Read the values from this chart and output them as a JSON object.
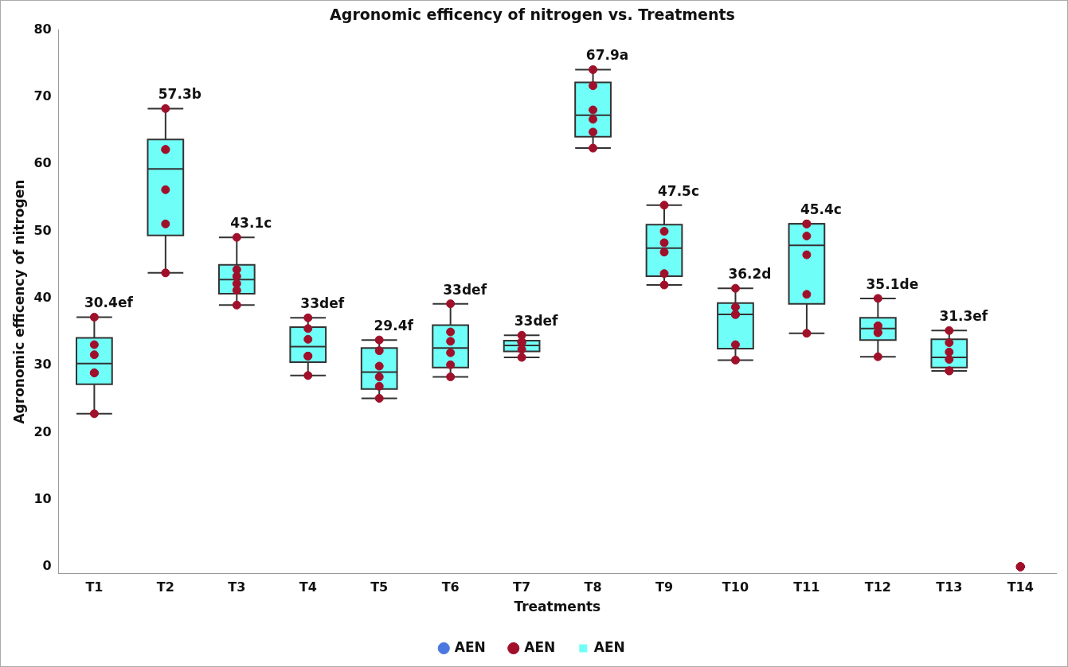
{
  "chart_data": {
    "type": "box",
    "title": "Agronomic efficency of nitrogen vs. Treatments",
    "xlabel": "Treatments",
    "ylabel": "Agronomic efficency of nitrogen",
    "categories": [
      "T1",
      "T2",
      "T3",
      "T4",
      "T5",
      "T6",
      "T7",
      "T8",
      "T9",
      "T10",
      "T11",
      "T12",
      "T13",
      "T14"
    ],
    "ylim": [
      -1,
      80
    ],
    "yticks": [
      0,
      10,
      20,
      30,
      40,
      50,
      60,
      70,
      80
    ],
    "grid": false,
    "legend": "bottom",
    "series": [
      {
        "name": "AEN",
        "type": "scatter",
        "color": "#4a78e0",
        "values": [
          null,
          null,
          null,
          null,
          null,
          null,
          null,
          null,
          null,
          null,
          null,
          null,
          null,
          null
        ]
      },
      {
        "name": "AEN",
        "type": "box",
        "color": "#70fff8",
        "boxes": [
          {
            "low": 22.8,
            "q1": 27.2,
            "median": 30.3,
            "q3": 34.1,
            "high": 37.2
          },
          {
            "low": 43.8,
            "q1": 49.4,
            "median": 59.3,
            "q3": 63.7,
            "high": 68.3
          },
          {
            "low": 39.0,
            "q1": 40.7,
            "median": 42.8,
            "q3": 45.0,
            "high": 49.1
          },
          {
            "low": 28.5,
            "q1": 30.5,
            "median": 32.8,
            "q3": 35.7,
            "high": 37.1
          },
          {
            "low": 25.1,
            "q1": 26.5,
            "median": 29.0,
            "q3": 32.6,
            "high": 33.8
          },
          {
            "low": 28.3,
            "q1": 29.7,
            "median": 32.6,
            "q3": 36.0,
            "high": 39.2
          },
          {
            "low": 31.2,
            "q1": 32.1,
            "median": 33.0,
            "q3": 33.7,
            "high": 34.5
          },
          {
            "low": 62.4,
            "q1": 64.1,
            "median": 67.3,
            "q3": 72.2,
            "high": 74.1
          },
          {
            "low": 42.0,
            "q1": 43.3,
            "median": 47.5,
            "q3": 51.0,
            "high": 53.9
          },
          {
            "low": 30.8,
            "q1": 32.5,
            "median": 37.6,
            "q3": 39.3,
            "high": 41.5
          },
          {
            "low": 34.8,
            "q1": 39.2,
            "median": 47.9,
            "q3": 51.1,
            "high": 51.1
          },
          {
            "low": 31.3,
            "q1": 33.8,
            "median": 35.5,
            "q3": 37.1,
            "high": 40.0
          },
          {
            "low": 29.2,
            "q1": 29.7,
            "median": 31.2,
            "q3": 33.9,
            "high": 35.2
          },
          null
        ]
      },
      {
        "name": "AEN",
        "type": "scatter",
        "color": "#a0102a",
        "x": [
          "T1",
          "T1",
          "T1",
          "T1",
          "T1",
          "T1",
          "T2",
          "T2",
          "T2",
          "T2",
          "T2",
          "T2",
          "T3",
          "T3",
          "T3",
          "T3",
          "T3",
          "T3",
          "T4",
          "T4",
          "T4",
          "T4",
          "T4",
          "T4",
          "T5",
          "T5",
          "T5",
          "T5",
          "T5",
          "T5",
          "T6",
          "T6",
          "T6",
          "T6",
          "T6",
          "T6",
          "T7",
          "T7",
          "T7",
          "T7",
          "T7",
          "T7",
          "T8",
          "T8",
          "T8",
          "T8",
          "T8",
          "T8",
          "T9",
          "T9",
          "T9",
          "T9",
          "T9",
          "T9",
          "T10",
          "T10",
          "T10",
          "T10",
          "T10",
          "T10",
          "T11",
          "T11",
          "T11",
          "T11",
          "T11",
          "T11",
          "T12",
          "T12",
          "T12",
          "T12",
          "T12",
          "T12",
          "T13",
          "T13",
          "T13",
          "T13",
          "T13",
          "T13",
          "T14",
          "T14",
          "T14",
          "T14",
          "T14",
          "T14"
        ],
        "values": [
          37.2,
          33.1,
          31.6,
          28.9,
          28.9,
          22.8,
          68.3,
          62.2,
          62.2,
          56.2,
          51.1,
          43.8,
          49.1,
          44.3,
          43.3,
          42.2,
          41.2,
          39.0,
          37.1,
          35.5,
          33.9,
          31.4,
          31.4,
          28.5,
          33.8,
          32.2,
          29.9,
          28.3,
          26.9,
          25.1,
          39.2,
          35.0,
          33.6,
          31.9,
          30.1,
          28.3,
          34.5,
          33.5,
          33.5,
          33.5,
          32.4,
          31.2,
          74.1,
          71.7,
          68.1,
          66.7,
          64.8,
          62.4,
          53.9,
          50.0,
          48.3,
          46.9,
          43.7,
          42.0,
          41.5,
          38.7,
          37.6,
          37.6,
          33.1,
          30.8,
          51.1,
          51.1,
          49.3,
          46.5,
          40.6,
          34.8,
          40.0,
          35.9,
          35.9,
          34.9,
          34.9,
          31.3,
          35.2,
          33.4,
          32.0,
          30.9,
          29.2,
          29.2,
          0,
          0,
          0,
          0,
          0,
          0
        ]
      }
    ],
    "annotations": [
      {
        "text": "30.4ef",
        "x": "T1",
        "y": 37.2
      },
      {
        "text": "57.3b",
        "x": "T2",
        "y": 68.3
      },
      {
        "text": "43.1c",
        "x": "T3",
        "y": 49.1
      },
      {
        "text": "33def",
        "x": "T4",
        "y": 37.1
      },
      {
        "text": "29.4f",
        "x": "T5",
        "y": 33.8
      },
      {
        "text": "33def",
        "x": "T6",
        "y": 39.2
      },
      {
        "text": "33def",
        "x": "T7",
        "y": 34.5
      },
      {
        "text": "67.9a",
        "x": "T8",
        "y": 74.1
      },
      {
        "text": "47.5c",
        "x": "T9",
        "y": 53.9
      },
      {
        "text": "36.2d",
        "x": "T10",
        "y": 41.5
      },
      {
        "text": "45.4c",
        "x": "T11",
        "y": 51.1
      },
      {
        "text": "35.1de",
        "x": "T12",
        "y": 40.0
      },
      {
        "text": "31.3ef",
        "x": "T13",
        "y": 35.2
      }
    ]
  }
}
